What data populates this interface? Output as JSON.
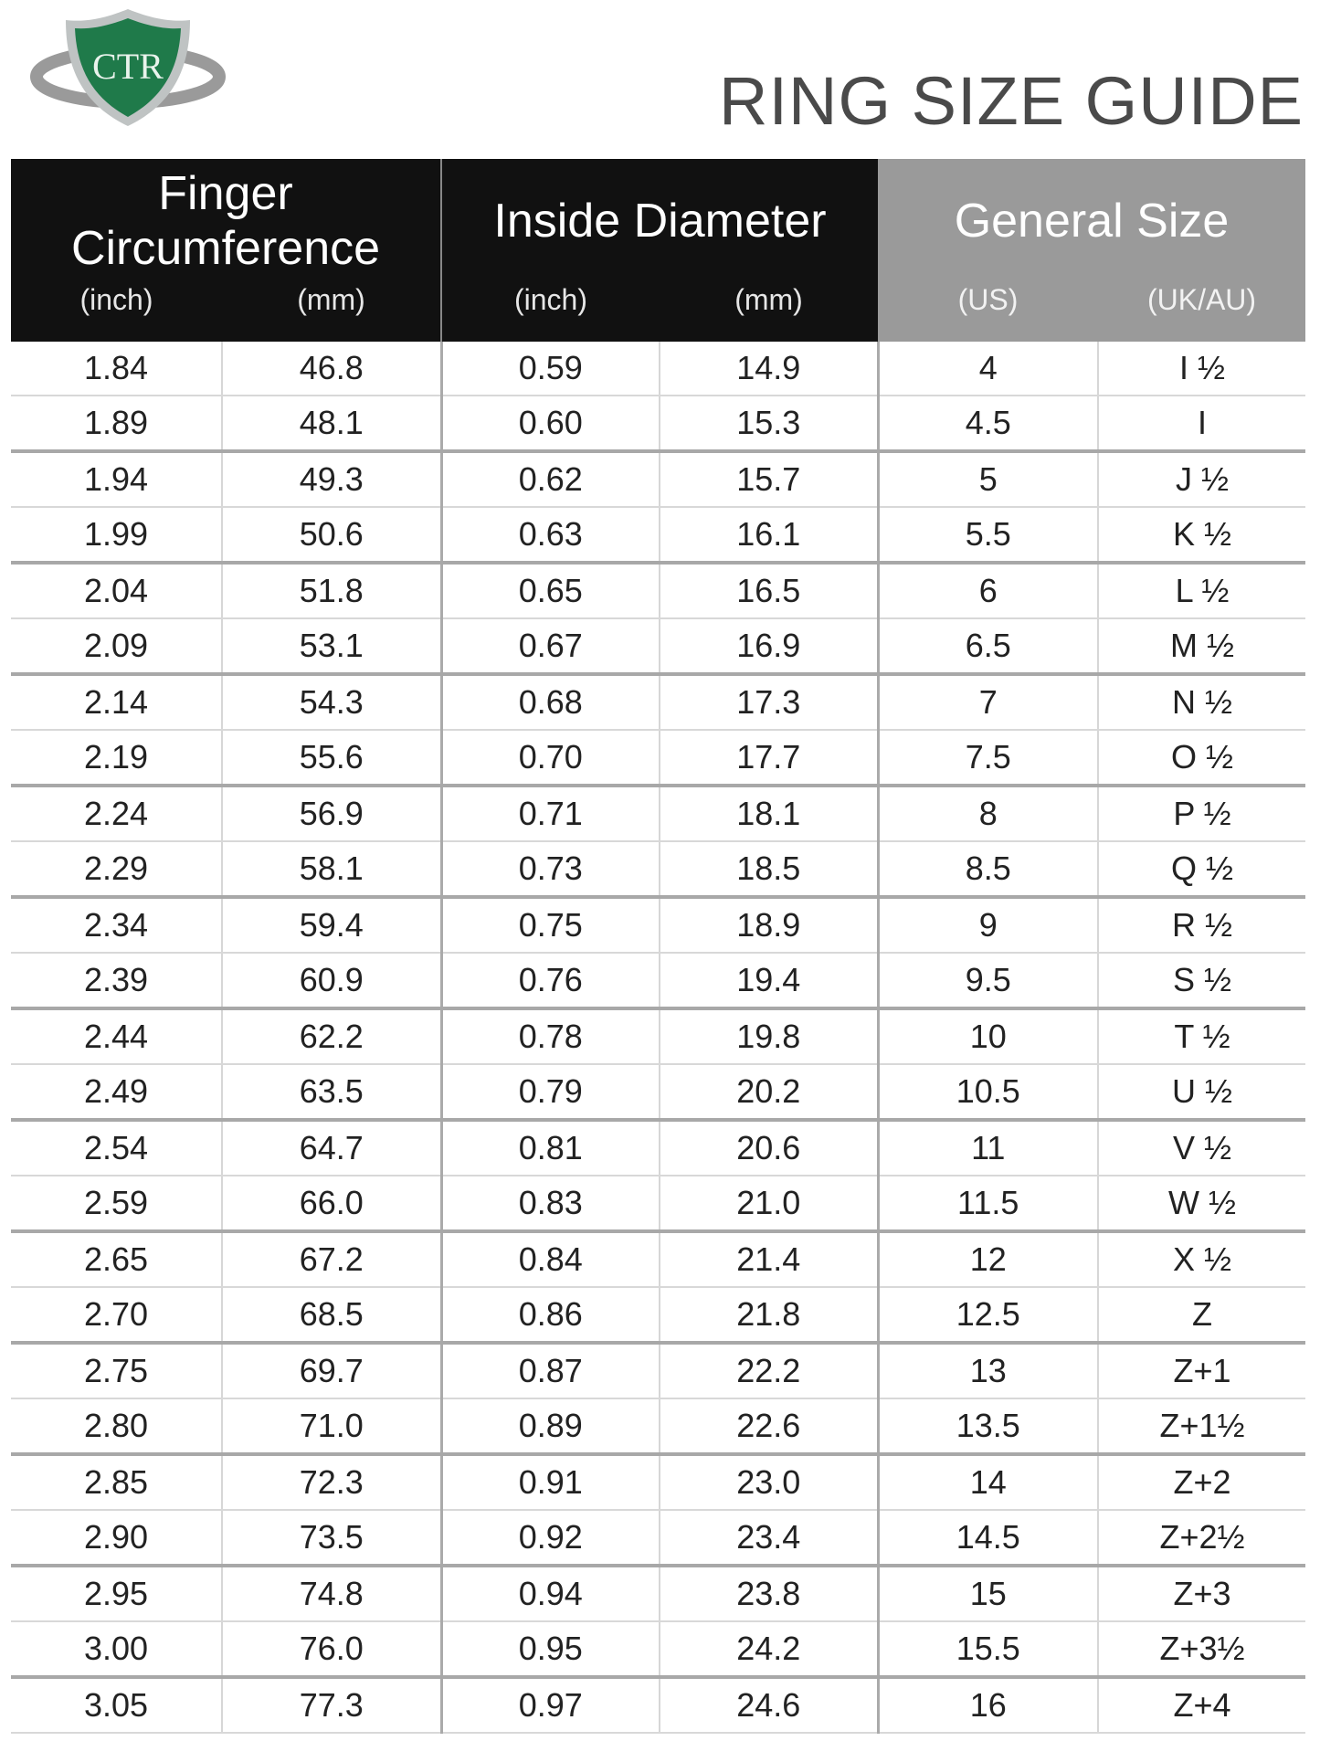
{
  "logo": {
    "text": "CTR"
  },
  "title": "RING SIZE GUIDE",
  "table": {
    "groups": [
      {
        "title": "Finger Circumference",
        "units": [
          "(inch)",
          "(mm)"
        ]
      },
      {
        "title": "Inside Diameter",
        "units": [
          "(inch)",
          "(mm)"
        ]
      },
      {
        "title": "General Size",
        "units": [
          "(US)",
          "(UK/AU)"
        ]
      }
    ],
    "rows": [
      [
        "1.84",
        "46.8",
        "0.59",
        "14.9",
        "4",
        "I ½"
      ],
      [
        "1.89",
        "48.1",
        "0.60",
        "15.3",
        "4.5",
        "I"
      ],
      [
        "1.94",
        "49.3",
        "0.62",
        "15.7",
        "5",
        "J ½"
      ],
      [
        "1.99",
        "50.6",
        "0.63",
        "16.1",
        "5.5",
        "K ½"
      ],
      [
        "2.04",
        "51.8",
        "0.65",
        "16.5",
        "6",
        "L ½"
      ],
      [
        "2.09",
        "53.1",
        "0.67",
        "16.9",
        "6.5",
        "M ½"
      ],
      [
        "2.14",
        "54.3",
        "0.68",
        "17.3",
        "7",
        "N ½"
      ],
      [
        "2.19",
        "55.6",
        "0.70",
        "17.7",
        "7.5",
        "O ½"
      ],
      [
        "2.24",
        "56.9",
        "0.71",
        "18.1",
        "8",
        "P ½"
      ],
      [
        "2.29",
        "58.1",
        "0.73",
        "18.5",
        "8.5",
        "Q ½"
      ],
      [
        "2.34",
        "59.4",
        "0.75",
        "18.9",
        "9",
        "R ½"
      ],
      [
        "2.39",
        "60.9",
        "0.76",
        "19.4",
        "9.5",
        "S ½"
      ],
      [
        "2.44",
        "62.2",
        "0.78",
        "19.8",
        "10",
        "T ½"
      ],
      [
        "2.49",
        "63.5",
        "0.79",
        "20.2",
        "10.5",
        "U ½"
      ],
      [
        "2.54",
        "64.7",
        "0.81",
        "20.6",
        "11",
        "V ½"
      ],
      [
        "2.59",
        "66.0",
        "0.83",
        "21.0",
        "11.5",
        "W ½"
      ],
      [
        "2.65",
        "67.2",
        "0.84",
        "21.4",
        "12",
        "X ½"
      ],
      [
        "2.70",
        "68.5",
        "0.86",
        "21.8",
        "12.5",
        "Z"
      ],
      [
        "2.75",
        "69.7",
        "0.87",
        "22.2",
        "13",
        "Z+1"
      ],
      [
        "2.80",
        "71.0",
        "0.89",
        "22.6",
        "13.5",
        "Z+1½"
      ],
      [
        "2.85",
        "72.3",
        "0.91",
        "23.0",
        "14",
        "Z+2"
      ],
      [
        "2.90",
        "73.5",
        "0.92",
        "23.4",
        "14.5",
        "Z+2½"
      ],
      [
        "2.95",
        "74.8",
        "0.94",
        "23.8",
        "15",
        "Z+3"
      ],
      [
        "3.00",
        "76.0",
        "0.95",
        "24.2",
        "15.5",
        "Z+3½"
      ],
      [
        "3.05",
        "77.3",
        "0.97",
        "24.6",
        "16",
        "Z+4"
      ]
    ]
  }
}
